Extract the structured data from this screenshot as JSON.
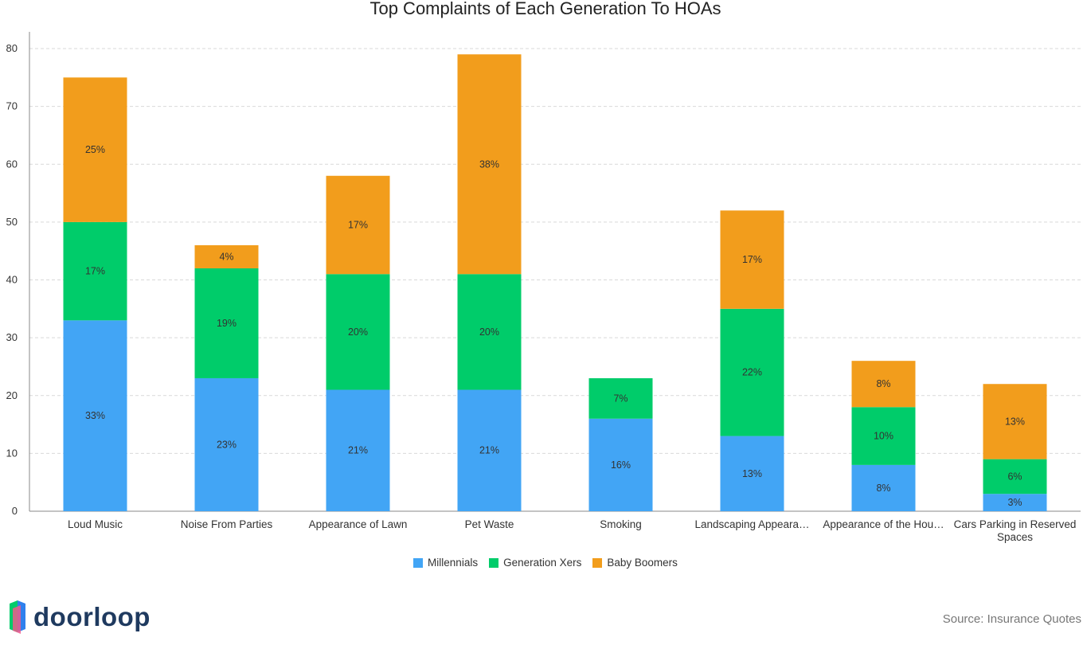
{
  "chart_data": {
    "type": "bar",
    "stacked": true,
    "title": "Top Complaints of Each Generation To HOAs",
    "categories": [
      "Loud Music",
      "Noise From Parties",
      "Appearance of Lawn",
      "Pet Waste",
      "Smoking",
      "Landscaping Appeara…",
      "Appearance of the Hou…",
      "Cars Parking in Reserved Spaces"
    ],
    "category_label_lines": [
      [
        "Loud Music"
      ],
      [
        "Noise From Parties"
      ],
      [
        "Appearance of Lawn"
      ],
      [
        "Pet Waste"
      ],
      [
        "Smoking"
      ],
      [
        "Landscaping Appeara…"
      ],
      [
        "Appearance of the Hou…"
      ],
      [
        "Cars Parking in Reserved",
        "Spaces"
      ]
    ],
    "series": [
      {
        "name": "Millennials",
        "color": "#42A5F5",
        "values": [
          33,
          23,
          21,
          21,
          16,
          13,
          8,
          3
        ]
      },
      {
        "name": "Generation Xers",
        "color": "#00CC6A",
        "values": [
          17,
          19,
          20,
          20,
          7,
          22,
          10,
          6
        ]
      },
      {
        "name": "Baby Boomers",
        "color": "#F29D1C",
        "values": [
          25,
          4,
          17,
          38,
          null,
          17,
          8,
          13
        ]
      }
    ],
    "ylim": [
      0,
      80
    ],
    "yticks": [
      0,
      10,
      20,
      30,
      40,
      50,
      60,
      70,
      80
    ],
    "value_suffix": "%",
    "xlabel": "",
    "ylabel": "",
    "grid": true,
    "legend_position": "bottom-center"
  },
  "branding": {
    "logo_text": "doorloop",
    "logo_colors": [
      "#00CC6A",
      "#F05A8C",
      "#2F80ED"
    ],
    "source": "Source: Insurance Quotes"
  }
}
